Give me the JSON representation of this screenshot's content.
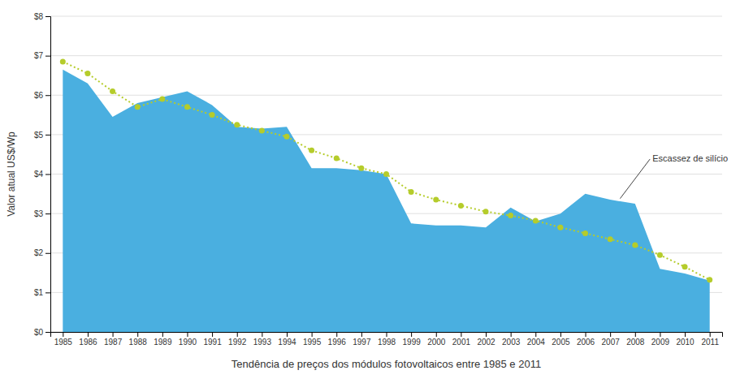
{
  "chart_data": {
    "type": "area",
    "xlabel": "Tendência de preços dos módulos fotovoltaicos entre 1985 e 2011",
    "ylabel": "Valor atual US$/Wp",
    "x": [
      1985,
      1986,
      1987,
      1988,
      1989,
      1990,
      1991,
      1992,
      1993,
      1994,
      1995,
      1996,
      1997,
      1998,
      1999,
      2000,
      2001,
      2002,
      2003,
      2004,
      2005,
      2006,
      2007,
      2008,
      2009,
      2010,
      2011
    ],
    "series": [
      {
        "type": "area",
        "color": "#4aafe0",
        "values": [
          6.65,
          6.3,
          5.45,
          5.8,
          5.95,
          6.1,
          5.75,
          5.2,
          5.15,
          5.2,
          4.15,
          4.15,
          4.1,
          4.0,
          2.75,
          2.7,
          2.7,
          2.65,
          3.15,
          2.8,
          3.0,
          3.5,
          3.35,
          3.25,
          1.6,
          1.48,
          1.3
        ]
      },
      {
        "type": "line",
        "color": "#b5cc2b",
        "line_style": "dotted",
        "marker": "circle",
        "values": [
          6.85,
          6.55,
          6.1,
          5.7,
          5.9,
          5.7,
          5.5,
          5.25,
          5.1,
          4.95,
          4.6,
          4.4,
          4.15,
          4.0,
          3.55,
          3.35,
          3.2,
          3.05,
          2.95,
          2.82,
          2.65,
          2.5,
          2.35,
          2.2,
          1.95,
          1.65,
          1.32
        ]
      }
    ],
    "xlim": [
      1984.5,
      2011.5
    ],
    "xticks": [
      1985,
      1986,
      1987,
      1988,
      1989,
      1990,
      1991,
      1992,
      1993,
      1994,
      1995,
      1996,
      1997,
      1998,
      1999,
      2000,
      2001,
      2002,
      2003,
      2004,
      2005,
      2006,
      2007,
      2008,
      2009,
      2010,
      2011
    ],
    "ylim": [
      0,
      8
    ],
    "yticks": [
      {
        "value": 0,
        "label": "$0"
      },
      {
        "value": 1,
        "label": "$1"
      },
      {
        "value": 2,
        "label": "$2"
      },
      {
        "value": 3,
        "label": "$3"
      },
      {
        "value": 4,
        "label": "$4"
      },
      {
        "value": 5,
        "label": "$5"
      },
      {
        "value": 6,
        "label": "$6"
      },
      {
        "value": 7,
        "label": "$7"
      },
      {
        "value": 8,
        "label": "$8"
      }
    ],
    "grid": true,
    "annotations": [
      {
        "text": "Escassez de silício",
        "x": 2007.4,
        "y": 3.38,
        "text_x": 2008.6,
        "text_y": 4.38
      }
    ]
  }
}
